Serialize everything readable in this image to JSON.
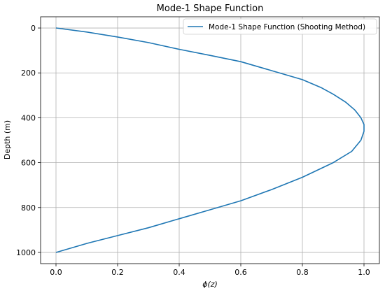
{
  "chart_data": {
    "type": "line",
    "title": "Mode-1 Shape Function",
    "xlabel": "ϕ(z)",
    "ylabel": "Depth (m)",
    "xlim": [
      -0.05,
      1.05
    ],
    "ylim": [
      1050,
      -50
    ],
    "y_inverted": true,
    "grid": true,
    "legend_position": "top-right",
    "xticks": [
      0.0,
      0.2,
      0.4,
      0.6,
      0.8,
      1.0
    ],
    "xtick_labels": [
      "0.0",
      "0.2",
      "0.4",
      "0.6",
      "0.8",
      "1.0"
    ],
    "yticks": [
      0,
      200,
      400,
      600,
      800,
      1000
    ],
    "ytick_labels": [
      "0",
      "200",
      "400",
      "600",
      "800",
      "1000"
    ],
    "series": [
      {
        "name": "Mode-1 Shape Function (Shooting Method)",
        "color": "#1f77b4",
        "x": [
          0.0,
          0.1,
          0.2,
          0.3,
          0.4,
          0.5,
          0.6,
          0.7,
          0.8,
          0.86,
          0.9,
          0.94,
          0.97,
          0.99,
          1.0,
          1.0,
          0.99,
          0.96,
          0.9,
          0.8,
          0.7,
          0.6,
          0.5,
          0.4,
          0.3,
          0.2,
          0.1,
          0.0
        ],
        "y": [
          0,
          18,
          40,
          65,
          95,
          122,
          150,
          190,
          230,
          265,
          295,
          330,
          365,
          400,
          430,
          460,
          500,
          550,
          600,
          665,
          720,
          770,
          810,
          850,
          890,
          925,
          960,
          1000
        ]
      }
    ]
  }
}
